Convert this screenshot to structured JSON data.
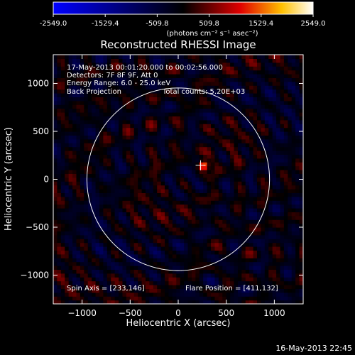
{
  "colorbar": {
    "ticks": [
      "-2549.0",
      "-1529.4",
      "-509.8",
      "509.8",
      "1529.4",
      "2549.0"
    ],
    "unit_label": "(photons cm⁻² s⁻¹ asec⁻²)",
    "colormap_stops": [
      "#0000ff",
      "#000000",
      "#ff0000",
      "#ffff00",
      "#ffffff"
    ]
  },
  "chart_data": {
    "type": "heatmap",
    "title": "Reconstructed RHESSI Image",
    "xlabel": "Heliocentric X (arcsec)",
    "ylabel": "Heliocentric Y (arcsec)",
    "xlim": [
      -1300,
      1300
    ],
    "ylim": [
      -1300,
      1300
    ],
    "xticks": [
      -1000,
      -500,
      0,
      500,
      1000
    ],
    "yticks": [
      -1000,
      -500,
      0,
      500,
      1000
    ],
    "value_range": [
      -2549.0,
      2549.0
    ],
    "solar_disk": {
      "center": [
        0,
        0
      ],
      "radius_arcsec": 950
    },
    "flare_marker": [
      233,
      146
    ],
    "bright_source": [
      262,
      146
    ],
    "annotations": [
      "17-May-2013 00:01:20.000 to 00:02:56.000",
      "Detectors: 7F 8F 9F, Att 0",
      "Energy Range: 6.0 - 25.0 keV",
      "Back Projection"
    ],
    "total_counts": "Total counts: 5.20E+03",
    "spin_axis": "Spin Axis = [233,146]",
    "flare_position": "Flare Position = [411,132]"
  },
  "footer": {
    "timestamp": "16-May-2013 22:45"
  }
}
